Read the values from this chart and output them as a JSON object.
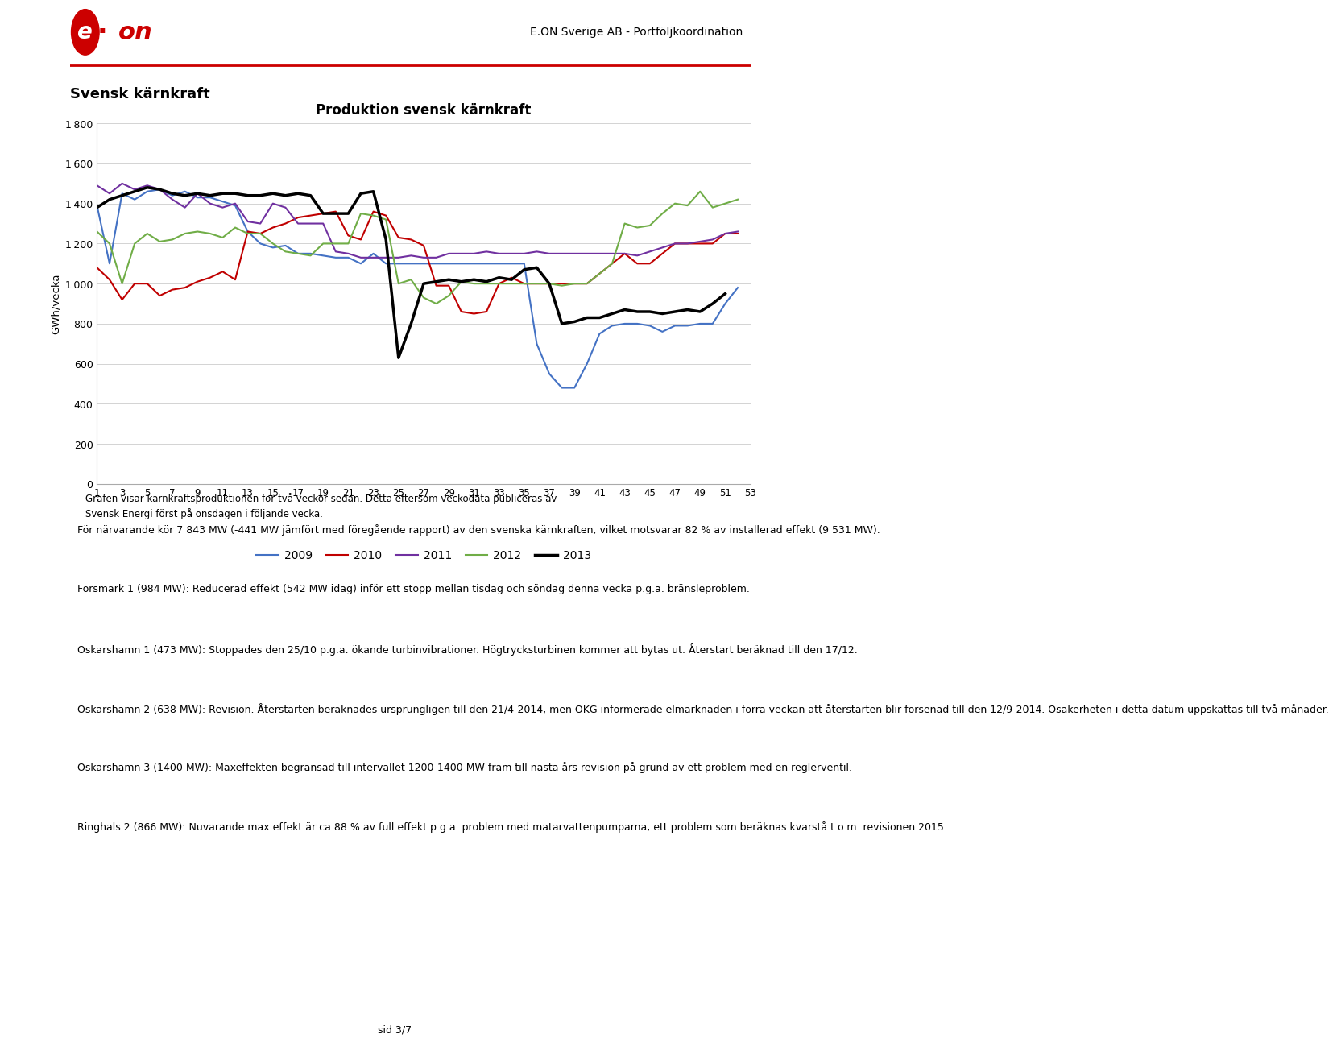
{
  "title": "Produktion svensk kärnkraft",
  "ylabel": "GWh/vecka",
  "page_header": "E.ON Sverige AB - Portföljkoordination",
  "section_title": "Svensk kärnkraft",
  "ylim": [
    0,
    1800
  ],
  "yticks": [
    0,
    200,
    400,
    600,
    800,
    1000,
    1200,
    1400,
    1600,
    1800
  ],
  "xticks": [
    1,
    3,
    5,
    7,
    9,
    11,
    13,
    15,
    17,
    19,
    21,
    23,
    25,
    27,
    29,
    31,
    33,
    35,
    37,
    39,
    41,
    43,
    45,
    47,
    49,
    51,
    53
  ],
  "xlim": [
    1,
    53
  ],
  "legend_labels": [
    "2009",
    "2010",
    "2011",
    "2012",
    "2013"
  ],
  "legend_colors": [
    "#4472C4",
    "#C00000",
    "#7030A0",
    "#70AD47",
    "#000000"
  ],
  "line_widths": [
    1.5,
    1.5,
    1.5,
    1.5,
    2.5
  ],
  "caption": "Grafen visar kärnkraftsproduktionen för två veckor sedan. Detta eftersom veckodata publiceras av\nSvensk Energi först på onsdagen i följande vecka.",
  "body_paragraphs": [
    "För närvarande kör 7 843 MW (-441 MW jämfört med föregående rapport) av den svenska kärnkraften, vilket motsvarar 82 % av installerad effekt (9 531 MW).",
    "Forsmark 1 (984 MW): Reducerad effekt (542 MW idag) inför ett stopp mellan tisdag och söndag denna vecka p.g.a. bränsleproblem.",
    "Oskarshamn 1 (473 MW): Stoppades den 25/10 p.g.a. ökande turbinvibrationer. Högtrycksturbinen kommer att bytas ut. Återstart beräknad till den 17/12.",
    "Oskarshamn 2 (638 MW): Revision. Återstarten beräknades ursprungligen till den 21/4-2014, men OKG informerade elmarknaden i förra veckan att återstarten blir försenad till den 12/9-2014. Osäkerheten i detta datum uppskattas till två månader.",
    "Oskarshamn 3 (1400 MW): Maxeffekten begränsad till intervallet 1200-1400 MW fram till nästa års revision på grund av ett problem med en reglerventil.",
    "Ringhals 2 (866 MW): Nuvarande max effekt är ca 88 % av full effekt p.g.a. problem med matarvattenpumparna, ett problem som beräknas kvarstå t.o.m. revisionen 2015."
  ],
  "footer": "sid 3/7",
  "y2009": [
    1390,
    1100,
    1450,
    1420,
    1460,
    1470,
    1440,
    1460,
    1430,
    1430,
    1410,
    1390,
    1260,
    1200,
    1180,
    1190,
    1150,
    1150,
    1140,
    1130,
    1130,
    1100,
    1150,
    1100,
    1100,
    1100,
    1100,
    1100,
    1100,
    1100,
    1100,
    1100,
    1100,
    1100,
    1100,
    700,
    550,
    480,
    480,
    600,
    750,
    790,
    800,
    800,
    790,
    760,
    790,
    790,
    800,
    800,
    900,
    980,
    null,
    null
  ],
  "y2010": [
    1080,
    1020,
    920,
    1000,
    1000,
    940,
    970,
    980,
    1010,
    1030,
    1060,
    1020,
    1260,
    1250,
    1280,
    1300,
    1330,
    1340,
    1350,
    1360,
    1240,
    1220,
    1360,
    1340,
    1230,
    1220,
    1190,
    990,
    990,
    860,
    850,
    860,
    1000,
    1030,
    1000,
    1000,
    1000,
    1000,
    1000,
    1000,
    1050,
    1100,
    1150,
    1100,
    1100,
    1150,
    1200,
    1200,
    1200,
    1200,
    1250,
    1250,
    null,
    null
  ],
  "y2011": [
    1490,
    1450,
    1500,
    1470,
    1490,
    1470,
    1420,
    1380,
    1450,
    1400,
    1380,
    1400,
    1310,
    1300,
    1400,
    1380,
    1300,
    1300,
    1300,
    1160,
    1150,
    1130,
    1130,
    1130,
    1130,
    1140,
    1130,
    1130,
    1150,
    1150,
    1150,
    1160,
    1150,
    1150,
    1150,
    1160,
    1150,
    1150,
    1150,
    1150,
    1150,
    1150,
    1150,
    1140,
    1160,
    1180,
    1200,
    1200,
    1210,
    1220,
    1250,
    1260,
    null,
    null
  ],
  "y2012": [
    1260,
    1200,
    1000,
    1200,
    1250,
    1210,
    1220,
    1250,
    1260,
    1250,
    1230,
    1280,
    1250,
    1250,
    1200,
    1160,
    1150,
    1140,
    1200,
    1200,
    1200,
    1350,
    1340,
    1320,
    1000,
    1020,
    930,
    900,
    940,
    1010,
    1000,
    1000,
    1000,
    1000,
    1000,
    1000,
    1000,
    990,
    1000,
    1000,
    1050,
    1100,
    1300,
    1280,
    1290,
    1350,
    1400,
    1390,
    1460,
    1380,
    1400,
    1420,
    null,
    null
  ],
  "y2013": [
    1380,
    1420,
    1440,
    1460,
    1480,
    1470,
    1450,
    1440,
    1450,
    1440,
    1450,
    1450,
    1440,
    1440,
    1450,
    1440,
    1450,
    1440,
    1350,
    1350,
    1350,
    1450,
    1460,
    1220,
    630,
    800,
    1000,
    1010,
    1020,
    1010,
    1020,
    1010,
    1030,
    1020,
    1070,
    1080,
    1000,
    800,
    810,
    830,
    830,
    850,
    870,
    860,
    860,
    850,
    860,
    870,
    860,
    900,
    950,
    null,
    null,
    null
  ]
}
